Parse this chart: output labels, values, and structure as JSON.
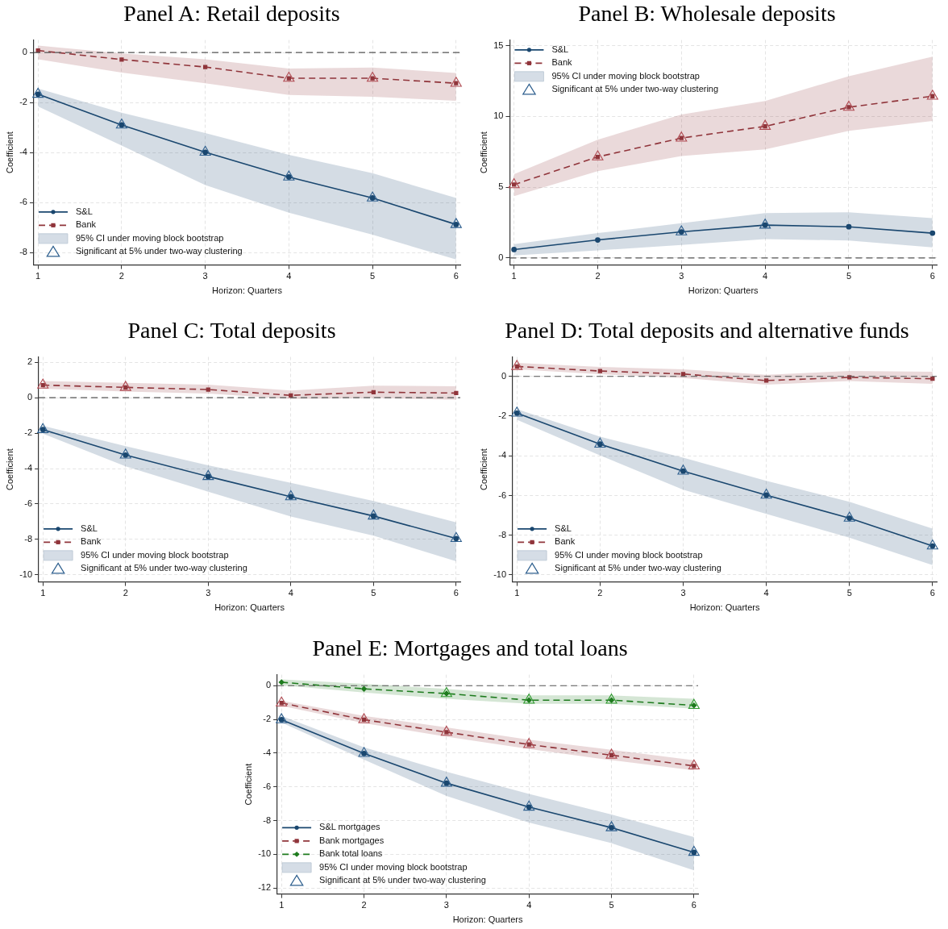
{
  "chart_data": [
    {
      "type": "line",
      "title": "Panel A: Retail deposits",
      "xlabel": "Horizon: Quarters",
      "ylabel": "Coefficient",
      "x": [
        1,
        2,
        3,
        4,
        5,
        6
      ],
      "xlim": [
        0.95,
        6.05
      ],
      "xticks": [
        1,
        2,
        3,
        4,
        5,
        6
      ],
      "ylim": [
        -8.5,
        0.5
      ],
      "yticks": [
        -8,
        -6,
        -4,
        -2,
        0
      ],
      "grid": true,
      "legend": "bottom left",
      "ref_lines": [
        {
          "axis": "y",
          "value": 0,
          "line_style": "dashed",
          "color": "#555555"
        }
      ],
      "series": [
        {
          "name": "S&L",
          "color": "#1a476f",
          "marker": "circle",
          "line_style": "solid",
          "values": [
            -1.67,
            -2.9,
            -3.99,
            -4.98,
            -5.82,
            -6.88
          ],
          "lower": [
            -2.16,
            -3.72,
            -5.3,
            -6.41,
            -7.29,
            -8.28
          ],
          "upper": [
            -1.44,
            -2.41,
            -3.22,
            -4.09,
            -4.83,
            -5.82
          ]
        },
        {
          "name": "Bank",
          "color": "#90353b",
          "marker": "square",
          "line_style": "dashed",
          "values": [
            0.08,
            -0.28,
            -0.58,
            -1.03,
            -1.03,
            -1.23
          ],
          "lower": [
            -0.27,
            -0.8,
            -1.23,
            -1.7,
            -1.77,
            -1.93
          ],
          "upper": [
            0.28,
            -0.04,
            -0.27,
            -0.64,
            -0.6,
            -0.82
          ]
        },
        {
          "name": "95% CI under moving block bootstrap",
          "type": "area",
          "color": "#d5dde6",
          "values": [
            null,
            null,
            null,
            null,
            null,
            null
          ]
        },
        {
          "name": "Significant at 5% under two-way clustering",
          "type": "scatter",
          "marker": "triangle",
          "color": "#2e5f8e",
          "x": [
            1,
            2,
            3,
            4,
            5,
            6,
            4,
            5,
            6
          ],
          "values": [
            -1.67,
            -2.9,
            -3.99,
            -4.98,
            -5.82,
            -6.88,
            -1.03,
            -1.03,
            -1.23
          ],
          "colors": [
            "#2e5f8e",
            "#2e5f8e",
            "#2e5f8e",
            "#2e5f8e",
            "#2e5f8e",
            "#2e5f8e",
            "#b04a52",
            "#b04a52",
            "#b04a52"
          ]
        }
      ]
    },
    {
      "type": "line",
      "title": "Panel B: Wholesale deposits",
      "xlabel": "Horizon: Quarters",
      "ylabel": "Coefficient",
      "x": [
        1,
        2,
        3,
        4,
        5,
        6
      ],
      "xlim": [
        0.95,
        6.05
      ],
      "xticks": [
        1,
        2,
        3,
        4,
        5,
        6
      ],
      "ylim": [
        -0.5,
        15.4
      ],
      "yticks": [
        0,
        5,
        10,
        15
      ],
      "grid": true,
      "legend": "top left",
      "ref_lines": [
        {
          "axis": "y",
          "value": 0,
          "line_style": "dashed",
          "color": "#555555"
        }
      ],
      "series": [
        {
          "name": "S&L",
          "color": "#1a476f",
          "marker": "circle",
          "line_style": "solid",
          "values": [
            0.59,
            1.27,
            1.84,
            2.32,
            2.2,
            1.75
          ],
          "lower": [
            0.17,
            0.53,
            0.91,
            1.33,
            1.23,
            0.74
          ],
          "upper": [
            0.97,
            1.75,
            2.45,
            3.17,
            3.23,
            2.81
          ]
        },
        {
          "name": "Bank",
          "color": "#90353b",
          "marker": "square",
          "line_style": "dashed",
          "values": [
            5.18,
            7.14,
            8.47,
            9.3,
            10.65,
            11.43
          ],
          "lower": [
            4.37,
            6.13,
            7.2,
            7.67,
            8.98,
            9.68
          ],
          "upper": [
            5.92,
            8.35,
            10.14,
            11.09,
            12.84,
            14.22
          ]
        },
        {
          "name": "95% CI under moving block bootstrap",
          "type": "area",
          "color": "#d5dde6",
          "values": [
            null,
            null,
            null,
            null,
            null,
            null
          ]
        },
        {
          "name": "Significant at 5% under two-way clustering",
          "type": "scatter",
          "marker": "triangle",
          "color": "#2e5f8e",
          "x": [
            3,
            4,
            1,
            2,
            3,
            4,
            5,
            6
          ],
          "values": [
            1.84,
            2.32,
            5.18,
            7.14,
            8.47,
            9.3,
            10.65,
            11.43
          ],
          "colors": [
            "#2e5f8e",
            "#2e5f8e",
            "#b04a52",
            "#b04a52",
            "#b04a52",
            "#b04a52",
            "#b04a52",
            "#b04a52"
          ]
        }
      ]
    },
    {
      "type": "line",
      "title": "Panel C: Total deposits",
      "xlabel": "Horizon: Quarters",
      "ylabel": "Coefficient",
      "x": [
        1,
        2,
        3,
        4,
        5,
        6
      ],
      "xlim": [
        0.95,
        6.05
      ],
      "xticks": [
        1,
        2,
        3,
        4,
        5,
        6
      ],
      "ylim": [
        -10.4,
        2.3
      ],
      "yticks": [
        -10,
        -8,
        -6,
        -4,
        -2,
        0,
        2
      ],
      "grid": true,
      "legend": "bottom left",
      "ref_lines": [
        {
          "axis": "y",
          "value": 0,
          "line_style": "dashed",
          "color": "#555555"
        }
      ],
      "series": [
        {
          "name": "S&L",
          "color": "#1a476f",
          "marker": "circle",
          "line_style": "solid",
          "values": [
            -1.8,
            -3.24,
            -4.45,
            -5.59,
            -6.68,
            -7.95
          ],
          "lower": [
            -2.03,
            -3.87,
            -5.31,
            -6.71,
            -7.79,
            -9.24
          ],
          "upper": [
            -1.59,
            -2.74,
            -3.82,
            -4.81,
            -5.83,
            -7.04
          ]
        },
        {
          "name": "Bank",
          "color": "#90353b",
          "marker": "square",
          "line_style": "dashed",
          "values": [
            0.71,
            0.58,
            0.46,
            0.13,
            0.31,
            0.26
          ],
          "lower": [
            0.51,
            0.35,
            0.23,
            -0.07,
            -0.02,
            -0.12
          ],
          "upper": [
            0.94,
            0.84,
            0.73,
            0.4,
            0.68,
            0.64
          ]
        },
        {
          "name": "95% CI under moving block bootstrap",
          "type": "area",
          "color": "#d5dde6",
          "values": [
            null,
            null,
            null,
            null,
            null,
            null
          ]
        },
        {
          "name": "Significant at 5% under two-way clustering",
          "type": "scatter",
          "marker": "triangle",
          "color": "#2e5f8e",
          "x": [
            1,
            2,
            3,
            4,
            5,
            6,
            1,
            2
          ],
          "values": [
            -1.8,
            -3.24,
            -4.45,
            -5.59,
            -6.68,
            -7.95,
            0.71,
            0.58
          ],
          "colors": [
            "#2e5f8e",
            "#2e5f8e",
            "#2e5f8e",
            "#2e5f8e",
            "#2e5f8e",
            "#2e5f8e",
            "#b04a52",
            "#b04a52"
          ]
        }
      ]
    },
    {
      "type": "line",
      "title": "Panel D: Total deposits and alternative funds",
      "xlabel": "Horizon: Quarters",
      "ylabel": "Coefficient",
      "x": [
        1,
        2,
        3,
        4,
        5,
        6
      ],
      "xlim": [
        0.95,
        6.05
      ],
      "xticks": [
        1,
        2,
        3,
        4,
        5,
        6
      ],
      "ylim": [
        -10.35,
        0.98
      ],
      "yticks": [
        -10,
        -8,
        -6,
        -4,
        -2,
        0
      ],
      "grid": true,
      "legend": "bottom left",
      "ref_lines": [
        {
          "axis": "y",
          "value": 0,
          "line_style": "dashed",
          "color": "#555555"
        }
      ],
      "series": [
        {
          "name": "S&L",
          "color": "#1a476f",
          "marker": "circle",
          "line_style": "solid",
          "values": [
            -1.85,
            -3.41,
            -4.77,
            -5.98,
            -7.14,
            -8.54
          ],
          "lower": [
            -2.18,
            -3.98,
            -5.71,
            -6.92,
            -8.12,
            -9.5
          ],
          "upper": [
            -1.65,
            -3.04,
            -4.09,
            -5.26,
            -6.32,
            -7.67
          ]
        },
        {
          "name": "Bank",
          "color": "#90353b",
          "marker": "square",
          "line_style": "dashed",
          "values": [
            0.5,
            0.27,
            0.12,
            -0.21,
            -0.05,
            -0.12
          ],
          "lower": [
            0.35,
            0.11,
            -0.08,
            -0.42,
            -0.23,
            -0.38
          ],
          "upper": [
            0.68,
            0.48,
            0.35,
            0.08,
            0.27,
            0.23
          ]
        },
        {
          "name": "95% CI under moving block bootstrap",
          "type": "area",
          "color": "#d5dde6",
          "values": [
            null,
            null,
            null,
            null,
            null,
            null
          ]
        },
        {
          "name": "Significant at 5% under two-way clustering",
          "type": "scatter",
          "marker": "triangle",
          "color": "#2e5f8e",
          "x": [
            1,
            2,
            3,
            4,
            5,
            6,
            1
          ],
          "values": [
            -1.85,
            -3.41,
            -4.77,
            -5.98,
            -7.14,
            -8.54,
            0.5
          ],
          "colors": [
            "#2e5f8e",
            "#2e5f8e",
            "#2e5f8e",
            "#2e5f8e",
            "#2e5f8e",
            "#2e5f8e",
            "#b04a52"
          ]
        }
      ]
    },
    {
      "type": "line",
      "title": "Panel E: Mortgages and total loans",
      "xlabel": "Horizon: Quarters",
      "ylabel": "Coefficient",
      "x": [
        1,
        2,
        3,
        4,
        5,
        6
      ],
      "xlim": [
        0.95,
        6.05
      ],
      "xticks": [
        1,
        2,
        3,
        4,
        5,
        6
      ],
      "ylim": [
        -12.35,
        0.65
      ],
      "yticks": [
        -12,
        -10,
        -8,
        -6,
        -4,
        -2,
        0
      ],
      "grid": true,
      "legend": "bottom left",
      "ref_lines": [
        {
          "axis": "y",
          "value": 0,
          "line_style": "dashed",
          "color": "#555555"
        }
      ],
      "series": [
        {
          "name": "S&L mortgages",
          "color": "#1a476f",
          "marker": "circle",
          "line_style": "solid",
          "values": [
            -2.02,
            -4.02,
            -5.78,
            -7.2,
            -8.42,
            -9.88
          ],
          "lower": [
            -2.19,
            -4.39,
            -6.54,
            -8.12,
            -9.34,
            -10.95
          ],
          "upper": [
            -1.8,
            -3.66,
            -5.1,
            -6.42,
            -7.64,
            -8.97
          ]
        },
        {
          "name": "Bank mortgages",
          "color": "#90353b",
          "marker": "square",
          "line_style": "dashed",
          "values": [
            -1.03,
            -2.02,
            -2.76,
            -3.49,
            -4.12,
            -4.76
          ],
          "lower": [
            -1.2,
            -2.22,
            -3.03,
            -3.75,
            -4.42,
            -5.02
          ],
          "upper": [
            -0.9,
            -1.8,
            -2.47,
            -3.2,
            -3.8,
            -4.42
          ]
        },
        {
          "name": "Bank total loans",
          "color": "#1e7b1e",
          "marker": "diamond",
          "line_style": "dashed",
          "values": [
            0.2,
            -0.19,
            -0.47,
            -0.86,
            -0.86,
            -1.17
          ],
          "lower": [
            0.02,
            -0.41,
            -0.78,
            -1.08,
            -1.08,
            -1.37
          ],
          "upper": [
            0.37,
            0.1,
            -0.19,
            -0.58,
            -0.58,
            -0.78
          ]
        },
        {
          "name": "95% CI under moving block bootstrap",
          "type": "area",
          "color": "#d5dde6",
          "values": [
            null,
            null,
            null,
            null,
            null,
            null
          ]
        },
        {
          "name": "Significant at 5% under two-way clustering",
          "type": "scatter",
          "marker": "triangle",
          "color": "#2e5f8e",
          "x": [
            1,
            2,
            3,
            4,
            5,
            6,
            1,
            2,
            3,
            4,
            5,
            6,
            3,
            4,
            5,
            6
          ],
          "values": [
            -2.02,
            -4.02,
            -5.78,
            -7.2,
            -8.42,
            -9.88,
            -1.03,
            -2.02,
            -2.76,
            -3.49,
            -4.12,
            -4.76,
            -0.47,
            -0.86,
            -0.86,
            -1.17
          ],
          "colors": [
            "#2e5f8e",
            "#2e5f8e",
            "#2e5f8e",
            "#2e5f8e",
            "#2e5f8e",
            "#2e5f8e",
            "#b04a52",
            "#b04a52",
            "#b04a52",
            "#b04a52",
            "#b04a52",
            "#b04a52",
            "#2f9a2f",
            "#2f9a2f",
            "#2f9a2f",
            "#2f9a2f"
          ]
        }
      ]
    }
  ]
}
